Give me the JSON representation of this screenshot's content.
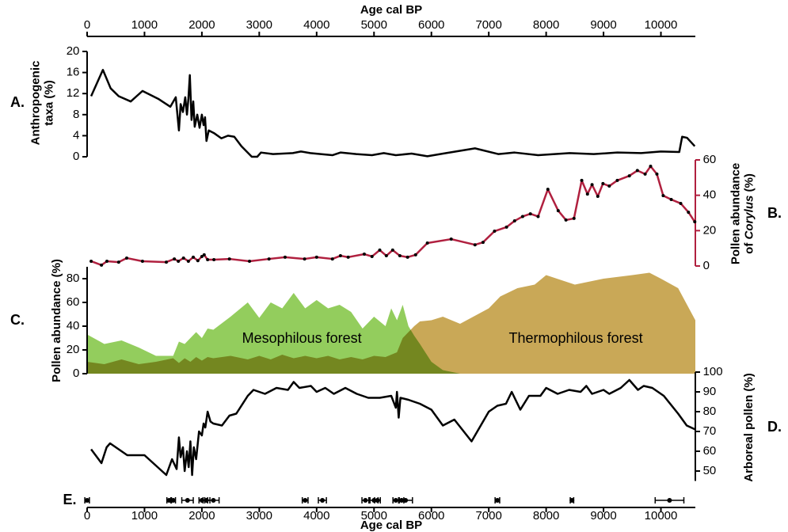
{
  "chart_data": [
    {
      "type": "line",
      "panel_label": "A.",
      "ylabel": [
        "Anthropogenic",
        "taxa (%)"
      ],
      "axis_side": "left",
      "color": "#000000",
      "xlabel": "Age cal BP",
      "xaxis": "top",
      "xlim": [
        0,
        10600
      ],
      "xticks": [
        0,
        1000,
        2000,
        3000,
        4000,
        5000,
        6000,
        7000,
        8000,
        9000,
        10000
      ],
      "ylim": [
        0,
        20
      ],
      "yticks": [
        0,
        4,
        8,
        12,
        16,
        20
      ],
      "x": [
        70,
        275,
        410,
        550,
        760,
        965,
        1240,
        1450,
        1545,
        1600,
        1630,
        1670,
        1710,
        1740,
        1765,
        1790,
        1820,
        1850,
        1875,
        1920,
        1960,
        2000,
        2030,
        2055,
        2080,
        2120,
        2210,
        2340,
        2455,
        2565,
        2690,
        2870,
        2965,
        3030,
        3240,
        3585,
        3725,
        3890,
        4070,
        4275,
        4415,
        4690,
        4965,
        5170,
        5380,
        5655,
        5930,
        6205,
        6760,
        7170,
        7450,
        7860,
        8410,
        8830,
        9240,
        9655,
        10000,
        10320,
        10370,
        10455,
        10590
      ],
      "values": [
        11.5,
        16.5,
        13,
        11.5,
        10.5,
        12.5,
        11,
        9.5,
        11.3,
        5,
        10,
        8.5,
        11.3,
        8,
        11,
        15.5,
        7,
        10.5,
        5.7,
        8,
        5.5,
        8,
        6,
        7.5,
        3,
        5,
        4.5,
        3.5,
        4,
        3.8,
        2,
        0,
        0,
        0.8,
        0.5,
        0.7,
        1,
        0.7,
        0.5,
        0.3,
        0.8,
        0.5,
        0.3,
        0.7,
        0.3,
        0.6,
        0.1,
        0.6,
        1.6,
        0.5,
        0.8,
        0.3,
        0.7,
        0.5,
        0.8,
        0.7,
        1,
        0.9,
        3.8,
        3.6,
        2
      ]
    },
    {
      "type": "line",
      "panel_label": "B.",
      "ylabel": [
        "Pollen abundance",
        [
          "of ",
          "Corylus",
          " (%)"
        ]
      ],
      "axis_side": "right",
      "color": "#b0203f",
      "markers": true,
      "marker_color": "#000000",
      "ylim": [
        0,
        60
      ],
      "yticks": [
        0,
        20,
        40,
        60
      ],
      "x": [
        70,
        250,
        345,
        550,
        690,
        965,
        1380,
        1520,
        1590,
        1680,
        1765,
        1850,
        1930,
        2000,
        2040,
        2100,
        2210,
        2480,
        2830,
        3170,
        3450,
        3790,
        4000,
        4275,
        4415,
        4550,
        4830,
        4965,
        5100,
        5215,
        5325,
        5450,
        5585,
        5725,
        5930,
        6345,
        6760,
        6900,
        7100,
        7310,
        7450,
        7590,
        7725,
        7860,
        8030,
        8210,
        8345,
        8485,
        8620,
        8720,
        8800,
        8900,
        8990,
        9100,
        9240,
        9450,
        9590,
        9725,
        9820,
        9930,
        10040,
        10180,
        10345,
        10480,
        10590
      ],
      "values": [
        2.7,
        0.5,
        2.7,
        2.2,
        4.5,
        2.7,
        2.2,
        4,
        2.7,
        4.5,
        2.7,
        5,
        3,
        5.4,
        6.3,
        3.6,
        3.6,
        4,
        2.7,
        4,
        5,
        4,
        5,
        4,
        5.8,
        5,
        6.7,
        5.4,
        9,
        5.8,
        9,
        5.8,
        5,
        6.3,
        13,
        15.2,
        12,
        13.4,
        19.7,
        22,
        25.5,
        28,
        29.5,
        28,
        43.4,
        31.3,
        26,
        26.9,
        48.4,
        40.7,
        46,
        39.4,
        46.6,
        45.2,
        48.4,
        51,
        54,
        52,
        56.4,
        52,
        39.8,
        37.6,
        35.4,
        30.4,
        25
      ]
    },
    {
      "type": "area",
      "panel_label": "C.",
      "ylabel": [
        "Pollen abundance (%)"
      ],
      "axis_side": "left",
      "ylim": [
        0,
        90
      ],
      "yticks": [
        0,
        20,
        40,
        60,
        80
      ],
      "x": [
        0,
        300,
        600,
        900,
        1200,
        1500,
        1600,
        1700,
        1800,
        1900,
        2000,
        2100,
        2200,
        2500,
        2800,
        3000,
        3200,
        3400,
        3600,
        3800,
        4000,
        4200,
        4400,
        4600,
        4800,
        5000,
        5200,
        5300,
        5400,
        5500,
        5600,
        5700,
        5800,
        6000,
        6200,
        6500,
        7000,
        7200,
        7500,
        7800,
        8000,
        8500,
        9000,
        9500,
        9800,
        10000,
        10300,
        10600
      ],
      "series": [
        {
          "name": "Mesophilous forest",
          "color": "#93cd5d",
          "values": [
            33,
            25,
            28,
            22,
            15,
            15,
            27,
            25,
            30,
            35,
            30,
            38,
            37,
            48,
            60,
            47,
            60,
            55,
            68,
            55,
            62,
            55,
            58,
            52,
            38,
            48,
            40,
            55,
            45,
            58,
            40,
            32,
            25,
            10,
            3,
            0,
            0,
            0,
            0,
            0,
            0,
            0,
            0,
            0,
            0,
            0,
            0,
            0
          ]
        },
        {
          "name": "Thermophilous forest",
          "color": "#c9a857",
          "values": [
            10,
            8,
            12,
            8,
            10,
            13,
            9,
            13,
            10,
            14,
            11,
            14,
            13,
            15,
            12,
            15,
            12,
            16,
            13,
            15,
            13,
            15,
            12,
            14,
            12,
            15,
            14,
            16,
            18,
            30,
            35,
            40,
            44,
            45,
            48,
            42,
            55,
            65,
            72,
            75,
            83,
            75,
            80,
            83,
            85,
            80,
            72,
            45
          ]
        }
      ]
    },
    {
      "type": "line",
      "panel_label": "D.",
      "ylabel": [
        "Arboreal pollen (%)"
      ],
      "axis_side": "right",
      "color": "#000000",
      "ylim": [
        45,
        100
      ],
      "yticks": [
        50,
        60,
        70,
        80,
        90,
        100
      ],
      "x": [
        70,
        250,
        340,
        400,
        700,
        1000,
        1380,
        1480,
        1560,
        1600,
        1630,
        1670,
        1700,
        1740,
        1770,
        1800,
        1830,
        1860,
        1900,
        1950,
        2000,
        2030,
        2060,
        2100,
        2150,
        2200,
        2350,
        2480,
        2600,
        2800,
        2900,
        3100,
        3300,
        3500,
        3600,
        3700,
        3900,
        4000,
        4150,
        4300,
        4500,
        4700,
        4900,
        5100,
        5300,
        5380,
        5400,
        5430,
        5460,
        5600,
        5800,
        6000,
        6200,
        6400,
        6700,
        7000,
        7150,
        7300,
        7400,
        7550,
        7700,
        7900,
        8000,
        8200,
        8400,
        8600,
        8700,
        8800,
        9000,
        9100,
        9300,
        9450,
        9600,
        9700,
        9850,
        10050,
        10300,
        10450,
        10600
      ],
      "values": [
        61,
        54,
        62,
        64,
        58,
        58,
        48,
        56,
        51,
        67,
        57,
        62,
        50,
        60,
        52,
        65,
        48,
        62,
        56,
        70,
        68,
        74,
        72,
        80,
        75,
        74,
        73,
        78,
        79,
        88,
        91,
        89,
        92,
        91,
        95,
        92,
        93,
        90,
        92,
        89,
        92,
        89,
        87,
        87,
        88,
        82,
        90,
        77,
        87,
        86,
        84,
        81,
        73,
        76,
        65,
        80,
        83,
        84,
        90,
        81,
        88,
        88,
        92,
        89,
        91,
        90,
        93,
        89,
        91,
        89,
        92,
        96,
        91,
        93,
        92,
        88,
        79,
        73,
        71
      ]
    },
    {
      "type": "errorbar",
      "panel_label": "E.",
      "color": "#000000",
      "xlabel": "Age cal BP",
      "xaxis": "bottom",
      "xlim": [
        0,
        10600
      ],
      "xticks": [
        0,
        1000,
        2000,
        3000,
        4000,
        5000,
        6000,
        7000,
        8000,
        9000,
        10000
      ],
      "x": [
        0,
        1430,
        1500,
        1750,
        2000,
        2080,
        2200,
        3800,
        4100,
        4850,
        5000,
        5060,
        5380,
        5480,
        5550,
        7150,
        8450,
        10150
      ],
      "errors": [
        40,
        40,
        40,
        100,
        50,
        60,
        100,
        50,
        70,
        60,
        70,
        50,
        50,
        40,
        120,
        40,
        30,
        250
      ]
    }
  ]
}
